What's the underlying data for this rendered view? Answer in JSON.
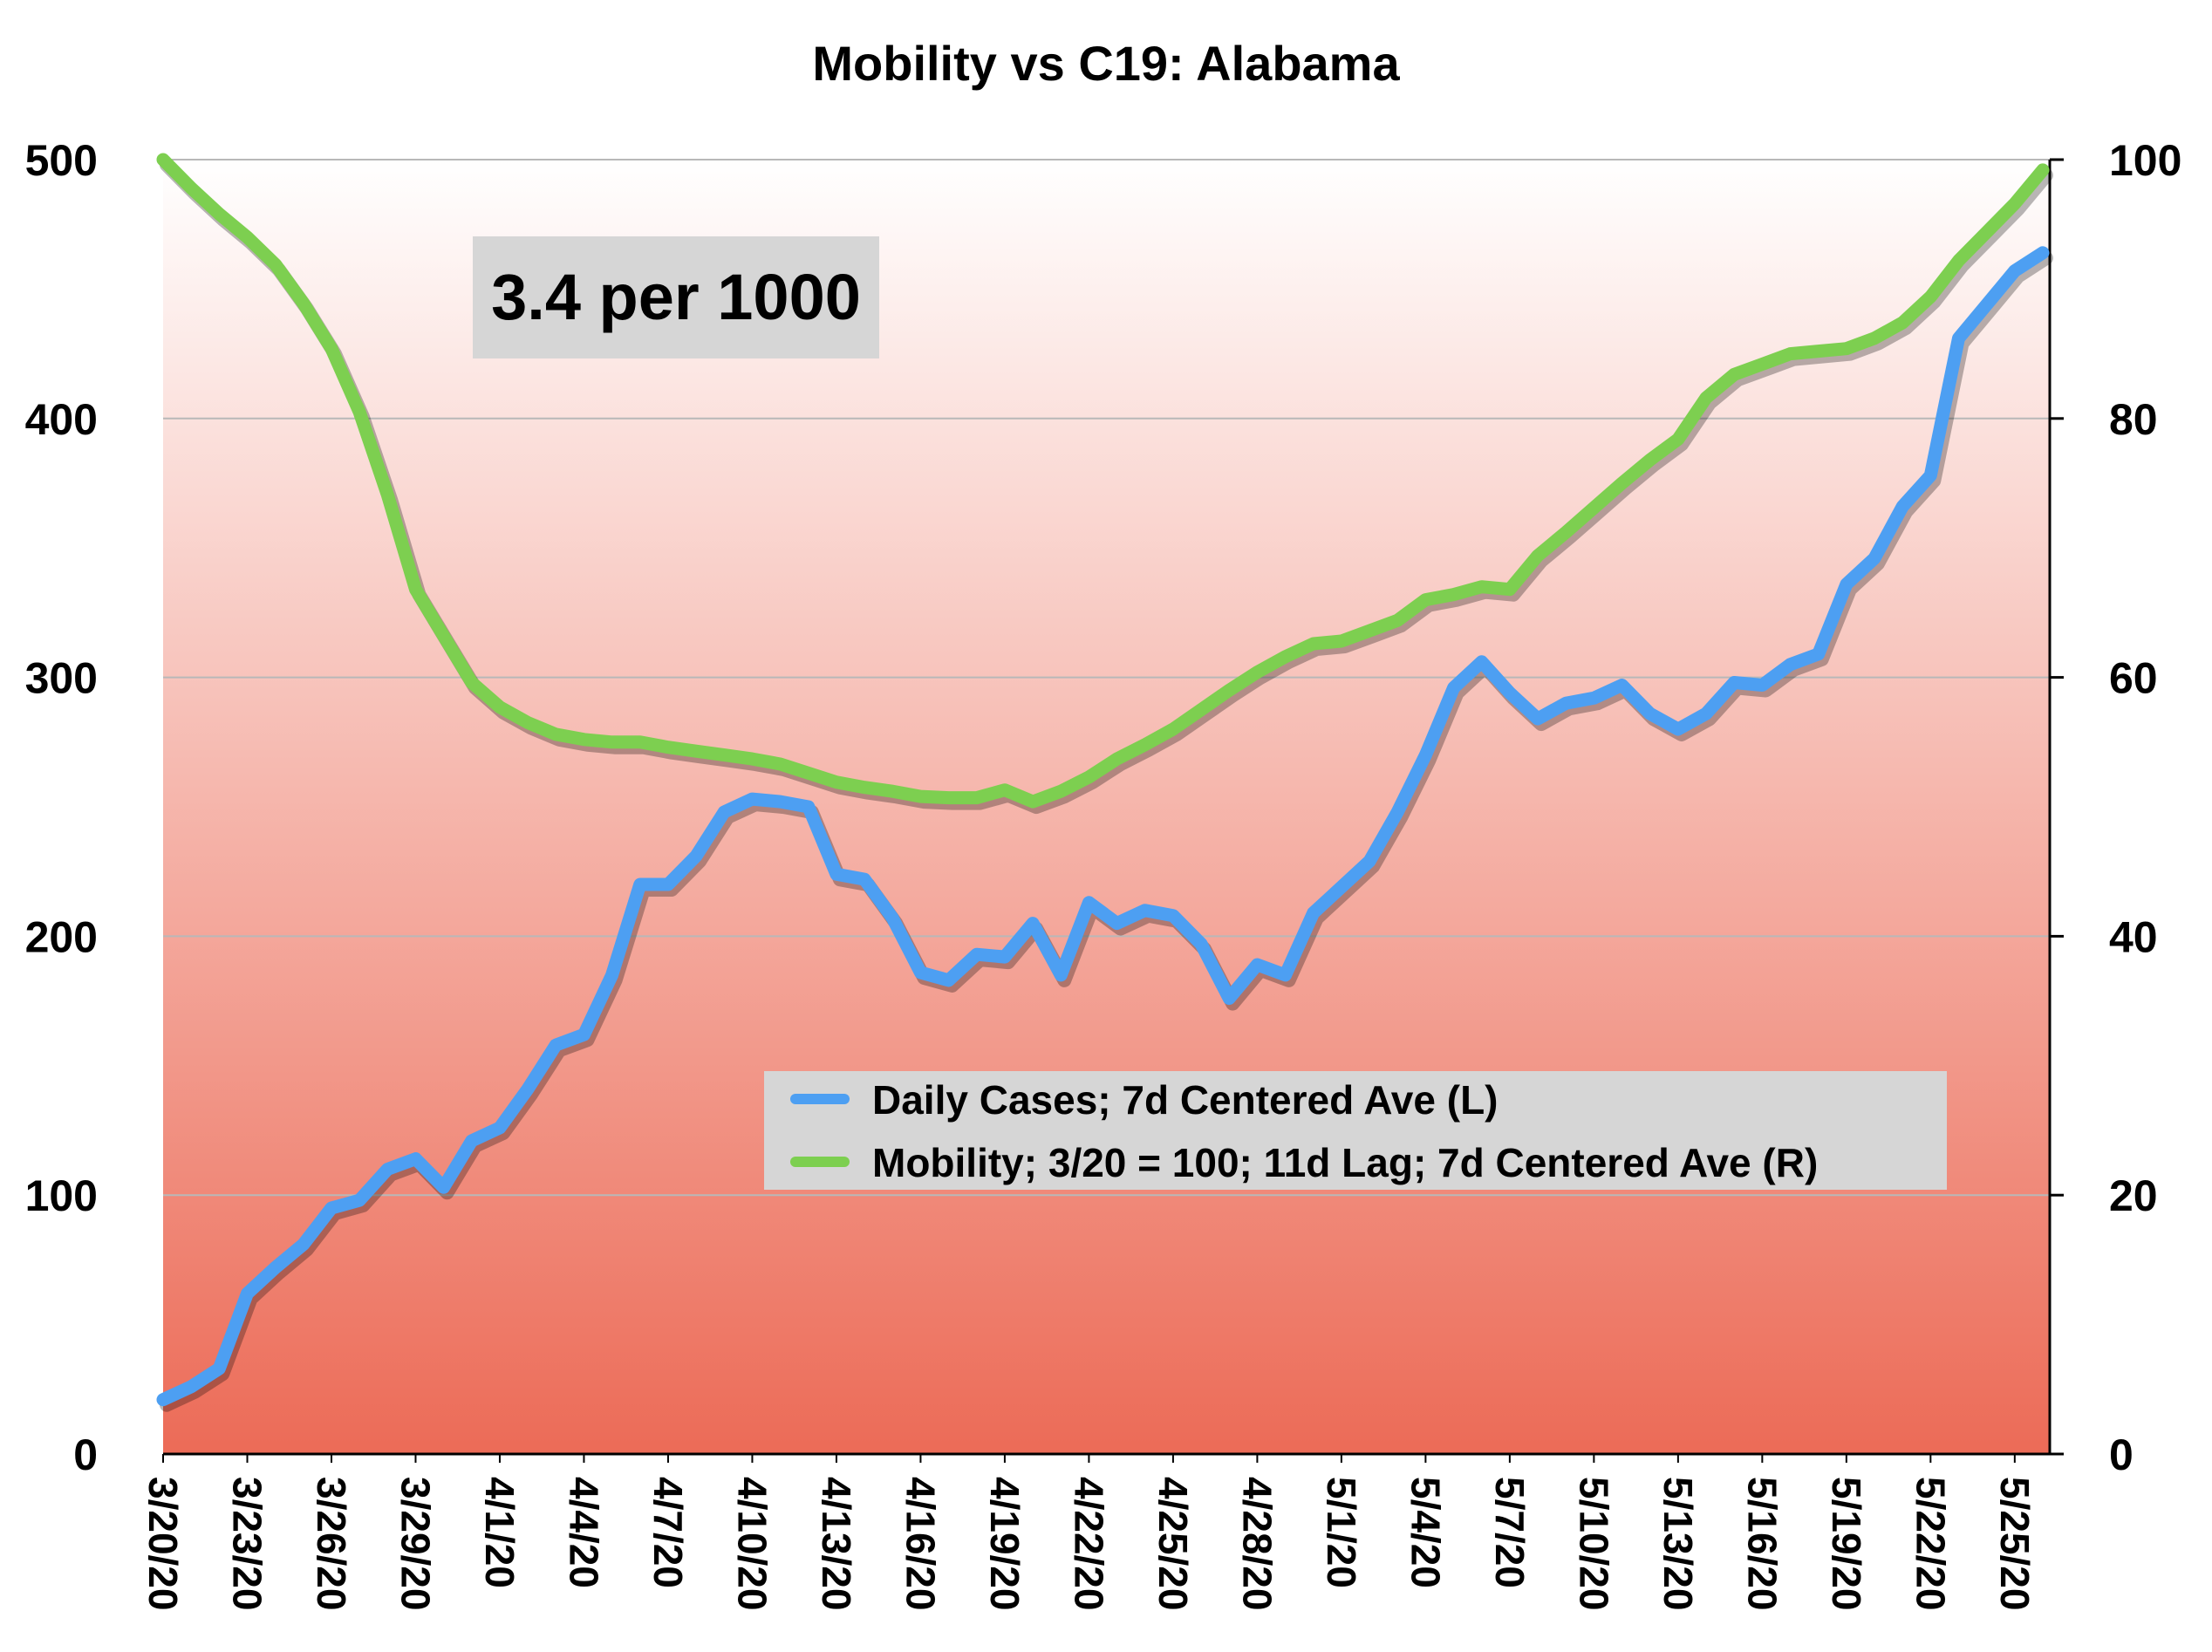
{
  "chart_data": {
    "type": "line",
    "title": "Mobility vs C19: Alabama",
    "annotation": "3.4 per 1000",
    "x": [
      "3/20/20",
      "3/21/20",
      "3/22/20",
      "3/23/20",
      "3/24/20",
      "3/25/20",
      "3/26/20",
      "3/27/20",
      "3/28/20",
      "3/29/20",
      "3/30/20",
      "3/31/20",
      "4/1/20",
      "4/2/20",
      "4/3/20",
      "4/4/20",
      "4/5/20",
      "4/6/20",
      "4/7/20",
      "4/8/20",
      "4/9/20",
      "4/10/20",
      "4/11/20",
      "4/12/20",
      "4/13/20",
      "4/14/20",
      "4/15/20",
      "4/16/20",
      "4/17/20",
      "4/18/20",
      "4/19/20",
      "4/20/20",
      "4/21/20",
      "4/22/20",
      "4/23/20",
      "4/24/20",
      "4/25/20",
      "4/26/20",
      "4/27/20",
      "4/28/20",
      "4/29/20",
      "4/30/20",
      "5/1/20",
      "5/2/20",
      "5/3/20",
      "5/4/20",
      "5/5/20",
      "5/6/20",
      "5/7/20",
      "5/8/20",
      "5/9/20",
      "5/10/20",
      "5/11/20",
      "5/12/20",
      "5/13/20",
      "5/14/20",
      "5/15/20",
      "5/16/20",
      "5/17/20",
      "5/18/20",
      "5/19/20",
      "5/20/20",
      "5/21/20",
      "5/22/20",
      "5/23/20",
      "5/24/20",
      "5/25/20",
      "5/26/20"
    ],
    "x_tick_labels": [
      "3/20/20",
      "3/23/20",
      "3/26/20",
      "3/29/20",
      "4/1/20",
      "4/4/20",
      "4/7/20",
      "4/10/20",
      "4/13/20",
      "4/16/20",
      "4/19/20",
      "4/22/20",
      "4/25/20",
      "4/28/20",
      "5/1/20",
      "5/4/20",
      "5/7/20",
      "5/10/20",
      "5/13/20",
      "5/16/20",
      "5/19/20",
      "5/22/20",
      "5/25/20"
    ],
    "y_left": {
      "ylim": [
        0,
        500
      ],
      "ticks": [
        0,
        100,
        200,
        300,
        400,
        500
      ]
    },
    "y_right": {
      "ylim": [
        0,
        100
      ],
      "ticks": [
        0,
        20,
        40,
        60,
        80,
        100
      ]
    },
    "grid": true,
    "legend_placement": "center-right",
    "series": [
      {
        "name": "Daily Cases; 7d Centered Ave (L)",
        "axis": "left",
        "color": "#4d9ff2",
        "values": [
          21,
          26,
          33,
          62,
          72,
          81,
          95,
          98,
          110,
          114,
          103,
          121,
          126,
          141,
          158,
          162,
          185,
          220,
          220,
          231,
          248,
          253,
          252,
          250,
          224,
          222,
          207,
          186,
          183,
          193,
          192,
          205,
          185,
          213,
          205,
          210,
          208,
          197,
          176,
          189,
          185,
          209,
          219,
          229,
          248,
          270,
          296,
          306,
          294,
          284,
          290,
          292,
          297,
          286,
          280,
          286,
          298,
          297,
          305,
          309,
          336,
          346,
          366,
          378,
          431,
          444,
          457,
          464
        ],
        "legend_marker": "#4d9ff2"
      },
      {
        "name": "Mobility; 3/20 = 100; 11d Lag; 7d Centered Ave (R)",
        "axis": "right",
        "color": "#7dcf50",
        "values": [
          100,
          97.8,
          95.8,
          94,
          91.9,
          88.9,
          85.4,
          80.5,
          74.1,
          66.8,
          63.2,
          59.6,
          57.7,
          56.5,
          55.6,
          55.2,
          55.0,
          55.0,
          54.6,
          54.3,
          54.0,
          53.7,
          53.3,
          52.6,
          51.9,
          51.5,
          51.2,
          50.8,
          50.7,
          50.7,
          51.3,
          50.4,
          51.2,
          52.3,
          53.7,
          54.8,
          56.0,
          57.5,
          59.0,
          60.4,
          61.6,
          62.6,
          62.8,
          63.6,
          64.4,
          66.0,
          66.4,
          67.0,
          66.8,
          69.4,
          71.2,
          73.1,
          75.0,
          76.8,
          78.4,
          81.6,
          83.4,
          84.2,
          85.0,
          85.2,
          85.4,
          86.2,
          87.4,
          89.4,
          92.2,
          94.4,
          96.6,
          99.2
        ]
      }
    ]
  }
}
